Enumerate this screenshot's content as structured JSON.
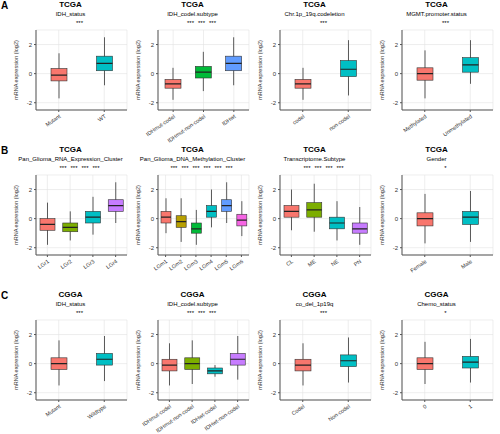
{
  "chart_data": [
    {
      "type": "box",
      "panel_label": "A",
      "title": "TCGA",
      "subtitle": "IDH_status",
      "y_label": "mRNA expression (log2)",
      "categories": [
        "Mutant",
        "WT"
      ],
      "colors": [
        "#F8766D",
        "#00BFC4"
      ],
      "min": [
        -1.7,
        -0.8
      ],
      "q1": [
        -0.5,
        0.2
      ],
      "median": [
        -0.1,
        0.7
      ],
      "q3": [
        0.35,
        1.2
      ],
      "max": [
        1.4,
        2.5
      ],
      "ylim": [
        -2.5,
        3
      ],
      "yticks": [
        -2,
        0,
        2
      ],
      "grid": true,
      "annotations": [
        "***"
      ]
    },
    {
      "type": "box",
      "title": "TCGA",
      "subtitle": "IDH_codel.subtype",
      "y_label": "mRNA expression (log2)",
      "categories": [
        "IDHmut-codel",
        "IDHmut-non-codel",
        "IDHwt"
      ],
      "colors": [
        "#F8766D",
        "#00BA38",
        "#619CFF"
      ],
      "min": [
        -1.8,
        -1.2,
        -0.8
      ],
      "q1": [
        -1.0,
        -0.3,
        0.2
      ],
      "median": [
        -0.7,
        0.1,
        0.7
      ],
      "q3": [
        -0.4,
        0.5,
        1.2
      ],
      "max": [
        0.4,
        1.5,
        2.5
      ],
      "ylim": [
        -2.5,
        3
      ],
      "yticks": [
        -2,
        0,
        2
      ],
      "grid": true,
      "annotations": [
        "***",
        "***",
        "***"
      ]
    },
    {
      "type": "box",
      "title": "TCGA",
      "subtitle": "Chr.1p_19q.codeletion",
      "y_label": "mRNA expression (log2)",
      "categories": [
        "codel",
        "non-codel"
      ],
      "colors": [
        "#F8766D",
        "#00BFC4"
      ],
      "min": [
        -1.8,
        -1.5
      ],
      "q1": [
        -1.0,
        -0.2
      ],
      "median": [
        -0.7,
        0.3
      ],
      "q3": [
        -0.4,
        0.9
      ],
      "max": [
        0.4,
        2.3
      ],
      "ylim": [
        -2.5,
        3
      ],
      "yticks": [
        -2,
        0,
        2
      ],
      "grid": true,
      "annotations": [
        "***"
      ]
    },
    {
      "type": "box",
      "title": "TCGA",
      "subtitle": "MGMT.promoter.status",
      "y_label": "mRNA expression (log2)",
      "categories": [
        "Methylated",
        "Unmethylated"
      ],
      "colors": [
        "#F8766D",
        "#00BFC4"
      ],
      "min": [
        -1.7,
        -0.7
      ],
      "q1": [
        -0.45,
        0.1
      ],
      "median": [
        0,
        0.6
      ],
      "q3": [
        0.4,
        1.1
      ],
      "max": [
        1.6,
        2.3
      ],
      "ylim": [
        -2.5,
        3
      ],
      "yticks": [
        -2,
        0,
        2
      ],
      "grid": true,
      "annotations": [
        "***"
      ]
    },
    {
      "type": "box",
      "panel_label": "B",
      "title": "TCGA",
      "subtitle": "Pan_Glioma_RNA_Expression_Cluster",
      "y_label": "mRNA expression (log2)",
      "categories": [
        "LGr1",
        "LGr2",
        "LGr3",
        "LGr4"
      ],
      "colors": [
        "#F8766D",
        "#7CAE00",
        "#00BFC4",
        "#C77CFF"
      ],
      "min": [
        -1.8,
        -1.5,
        -1.1,
        -0.3
      ],
      "q1": [
        -0.8,
        -0.9,
        -0.3,
        0.5
      ],
      "median": [
        -0.4,
        -0.6,
        0.1,
        0.9
      ],
      "q3": [
        0,
        -0.3,
        0.5,
        1.3
      ],
      "max": [
        1.1,
        0.5,
        1.5,
        2.5
      ],
      "ylim": [
        -2.5,
        3
      ],
      "yticks": [
        -2,
        0,
        2
      ],
      "grid": true,
      "annotations": [
        "***",
        "***",
        "***",
        "***"
      ]
    },
    {
      "type": "box",
      "title": "TCGA",
      "subtitle": "Pan_Glioma_DNA_Methylation_Cluster",
      "y_label": "mRNA expression (log2)",
      "categories": [
        "LGm1",
        "LGm2",
        "LGm3",
        "LGm4",
        "LGm5",
        "LGm6"
      ],
      "colors": [
        "#F8766D",
        "#B79F00",
        "#00BA38",
        "#00BFC4",
        "#619CFF",
        "#F564E3"
      ],
      "min": [
        -1.0,
        -1.6,
        -1.8,
        -0.6,
        -0.3,
        -1.2
      ],
      "q1": [
        -0.3,
        -0.6,
        -1.0,
        0.1,
        0.5,
        -0.5
      ],
      "median": [
        0.1,
        -0.2,
        -0.7,
        0.5,
        0.9,
        -0.1
      ],
      "q3": [
        0.5,
        0.2,
        -0.3,
        0.9,
        1.3,
        0.3
      ],
      "max": [
        1.4,
        1.4,
        0.6,
        2.0,
        2.5,
        1.2
      ],
      "ylim": [
        -2.5,
        3
      ],
      "yticks": [
        -2,
        0,
        2
      ],
      "grid": true,
      "annotations": [
        "***",
        "***",
        "***",
        "***",
        "***",
        "***"
      ]
    },
    {
      "type": "box",
      "title": "TCGA",
      "subtitle": "Transcriptome.Subtype",
      "y_label": "mRNA expression (log2)",
      "categories": [
        "CL",
        "ME",
        "NE",
        "PN"
      ],
      "colors": [
        "#F8766D",
        "#7CAE00",
        "#00BFC4",
        "#C77CFF"
      ],
      "min": [
        -0.8,
        -0.9,
        -1.5,
        -1.8
      ],
      "q1": [
        0.1,
        0.1,
        -0.7,
        -1.0
      ],
      "median": [
        0.5,
        0.6,
        -0.3,
        -0.7
      ],
      "q3": [
        0.9,
        1.1,
        0.1,
        -0.3
      ],
      "max": [
        2.0,
        2.4,
        1.2,
        0.8
      ],
      "ylim": [
        -2.5,
        3
      ],
      "yticks": [
        -2,
        0,
        2
      ],
      "grid": true,
      "annotations": [
        "***",
        "***",
        "***",
        "***"
      ]
    },
    {
      "type": "box",
      "title": "TCGA",
      "subtitle": "Gender",
      "y_label": "mRNA expression (log2)",
      "categories": [
        "Female",
        "Male"
      ],
      "colors": [
        "#F8766D",
        "#00BFC4"
      ],
      "min": [
        -1.7,
        -1.6
      ],
      "q1": [
        -0.5,
        -0.4
      ],
      "median": [
        0,
        0.1
      ],
      "q3": [
        0.4,
        0.5
      ],
      "max": [
        1.7,
        1.9
      ],
      "ylim": [
        -2.5,
        3
      ],
      "yticks": [
        -2,
        0,
        2
      ],
      "grid": true,
      "annotations": [
        "*"
      ]
    },
    {
      "type": "box",
      "panel_label": "C",
      "title": "CGGA",
      "subtitle": "IDH_status",
      "y_label": "mRNA expression (log2)",
      "categories": [
        "Mutant",
        "Wildtype"
      ],
      "colors": [
        "#F8766D",
        "#00BFC4"
      ],
      "min": [
        -1.5,
        -1.2
      ],
      "q1": [
        -0.4,
        -0.1
      ],
      "median": [
        0,
        0.3
      ],
      "q3": [
        0.4,
        0.7
      ],
      "max": [
        1.6,
        1.9
      ],
      "ylim": [
        -2.5,
        3
      ],
      "yticks": [
        -2,
        0,
        2
      ],
      "grid": true,
      "annotations": [
        "***"
      ]
    },
    {
      "type": "box",
      "title": "CGGA",
      "subtitle": "IDH_codel.subtype",
      "y_label": "mRNA expression (log2)",
      "categories": [
        "IDHmut-codel",
        "IDHmut-non-codel",
        "IDHwt-codel",
        "IDHwt-non-codel"
      ],
      "colors": [
        "#F8766D",
        "#7CAE00",
        "#00BFC4",
        "#C77CFF"
      ],
      "min": [
        -1.5,
        -1.4,
        -0.9,
        -1.1
      ],
      "q1": [
        -0.5,
        -0.4,
        -0.7,
        -0.1
      ],
      "median": [
        -0.1,
        0,
        -0.5,
        0.3
      ],
      "q3": [
        0.3,
        0.4,
        -0.3,
        0.7
      ],
      "max": [
        1.4,
        1.6,
        -0.1,
        1.9
      ],
      "ylim": [
        -2.5,
        3
      ],
      "yticks": [
        -2,
        0,
        2
      ],
      "grid": true,
      "annotations": [
        "***",
        "***",
        "***"
      ]
    },
    {
      "type": "box",
      "title": "CGGA",
      "subtitle": "co_del_1p19q",
      "y_label": "mRNA expression (log2)",
      "categories": [
        "Codel",
        "Non-codel"
      ],
      "colors": [
        "#F8766D",
        "#00BFC4"
      ],
      "min": [
        -1.5,
        -1.3
      ],
      "q1": [
        -0.5,
        -0.2
      ],
      "median": [
        -0.1,
        0.2
      ],
      "q3": [
        0.3,
        0.6
      ],
      "max": [
        1.4,
        1.8
      ],
      "ylim": [
        -2.5,
        3
      ],
      "yticks": [
        -2,
        0,
        2
      ],
      "grid": true,
      "annotations": [
        "***"
      ]
    },
    {
      "type": "box",
      "title": "CGGA",
      "subtitle": "Chemo_status",
      "y_label": "mRNA expression (log2)",
      "categories": [
        "0",
        "1"
      ],
      "colors": [
        "#F8766D",
        "#00BFC4"
      ],
      "min": [
        -1.4,
        -1.3
      ],
      "q1": [
        -0.4,
        -0.3
      ],
      "median": [
        0,
        0.1
      ],
      "q3": [
        0.4,
        0.5
      ],
      "max": [
        1.5,
        1.7
      ],
      "ylim": [
        -2.5,
        3
      ],
      "yticks": [
        -2,
        0,
        2
      ],
      "grid": true,
      "annotations": [
        "*"
      ]
    }
  ]
}
